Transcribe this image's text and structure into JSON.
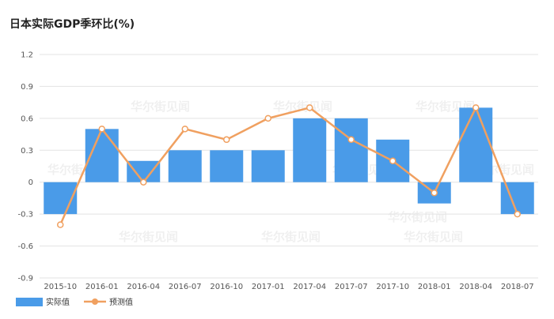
{
  "chart_data": {
    "type": "bar",
    "title": "日本实际GDP季环比(%)",
    "categories": [
      "2015-10",
      "2016-01",
      "2016-04",
      "2016-07",
      "2016-10",
      "2017-01",
      "2017-04",
      "2017-07",
      "2017-10",
      "2018-01",
      "2018-04",
      "2018-07"
    ],
    "series": [
      {
        "name": "实际值",
        "type": "bar",
        "color": "#4a9be8",
        "values": [
          -0.3,
          0.5,
          0.2,
          0.3,
          0.3,
          0.3,
          0.6,
          0.6,
          0.4,
          -0.2,
          0.7,
          -0.3
        ]
      },
      {
        "name": "预测值",
        "type": "line",
        "color": "#f0a060",
        "values": [
          -0.4,
          0.5,
          0.0,
          0.5,
          0.4,
          0.6,
          0.7,
          0.4,
          0.2,
          -0.1,
          0.7,
          -0.3
        ]
      }
    ],
    "yticks": [
      "1.2",
      "0.9",
      "0.6",
      "0.3",
      "0",
      "-0.3",
      "-0.6",
      "-0.9"
    ],
    "ylim": [
      -0.9,
      1.2
    ],
    "grid": true,
    "legend": "bottom-left"
  },
  "watermark": "华尔街见闻"
}
